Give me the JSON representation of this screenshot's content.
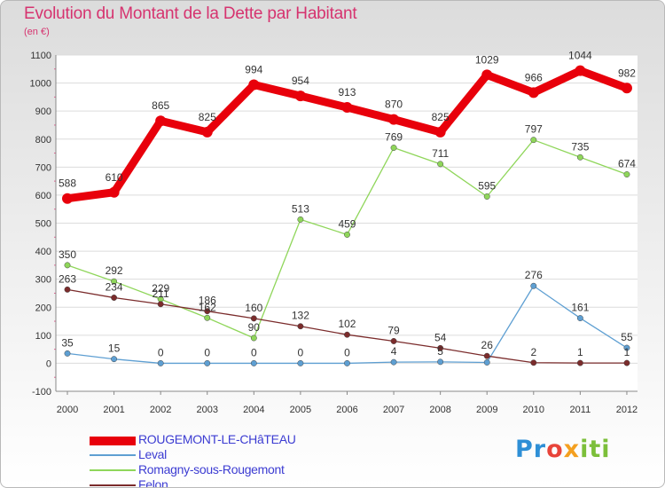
{
  "header": {
    "title": "Evolution du Montant de la Dette par Habitant",
    "unit": "(en €)"
  },
  "logo": {
    "text": "Proxiti",
    "parts": [
      "Pr",
      "o",
      "x",
      "iti"
    ]
  },
  "colors": {
    "title": "#d6336f",
    "legend_text": "#3c3cd2",
    "axis_text": "#333333",
    "grid": "#dddddd"
  },
  "chart_data": {
    "type": "line",
    "title": "Evolution du Montant de la Dette par Habitant",
    "subtitle": "(en €)",
    "x": [
      "2000",
      "2001",
      "2002",
      "2003",
      "2004",
      "2005",
      "2006",
      "2007",
      "2008",
      "2009",
      "2010",
      "2011",
      "2012"
    ],
    "ylim": [
      -100,
      1100
    ],
    "yticks": [
      -100,
      0,
      100,
      200,
      300,
      400,
      500,
      600,
      700,
      800,
      900,
      1000,
      1100
    ],
    "grid": "horizontal",
    "legend_position": "bottom-left",
    "series": [
      {
        "name": "ROUGEMONT-LE-CHâTEAU",
        "color": "#e8000b",
        "values": [
          588,
          610,
          865,
          825,
          994,
          954,
          913,
          870,
          825,
          1029,
          966,
          1044,
          982
        ],
        "labels": [
          "588",
          "610",
          "865",
          "825",
          "994",
          "954",
          "913",
          "870",
          "825",
          "1029",
          "966",
          "1044",
          "982"
        ]
      },
      {
        "name": "Leval",
        "color": "#5e9fd2",
        "values": [
          35,
          15,
          0,
          0,
          0,
          0,
          0,
          4,
          5,
          3,
          276,
          161,
          55
        ],
        "labels": [
          "35",
          "15",
          "0",
          "0",
          "0",
          "0",
          "0",
          "4",
          "5",
          "",
          "276",
          "161",
          "55"
        ]
      },
      {
        "name": "Romagny-sous-Rougemont",
        "color": "#8fd65a",
        "values": [
          350,
          292,
          229,
          162,
          90,
          513,
          459,
          769,
          711,
          595,
          797,
          735,
          674
        ],
        "labels": [
          "350",
          "292",
          "229",
          "162",
          "90",
          "513",
          "459",
          "769",
          "711",
          "595",
          "797",
          "735",
          "674"
        ]
      },
      {
        "name": "Felon",
        "color": "#7b2c2c",
        "values": [
          263,
          234,
          211,
          186,
          160,
          132,
          102,
          79,
          54,
          26,
          2,
          1,
          1
        ],
        "labels": [
          "263",
          "234",
          "211",
          "186",
          "160",
          "132",
          "102",
          "79",
          "54",
          "26",
          "2",
          "1",
          "1"
        ]
      }
    ]
  }
}
